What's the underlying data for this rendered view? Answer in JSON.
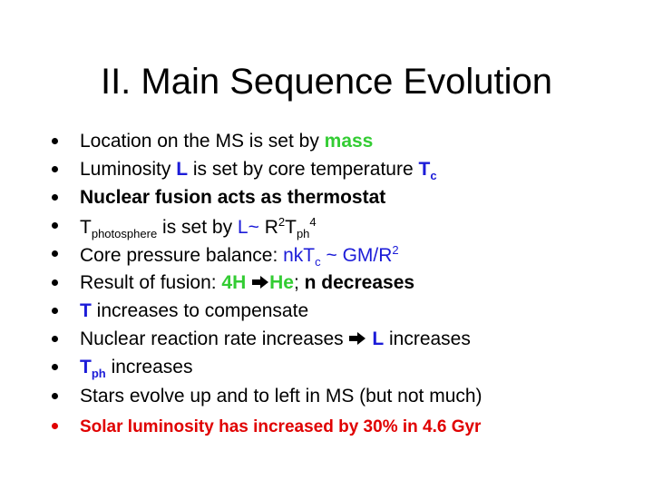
{
  "title": "II. Main Sequence Evolution",
  "bullets": [
    [
      "Location on the MS is set by ",
      "mass"
    ],
    [
      "Luminosity ",
      "L",
      " is set by core temperature ",
      "T",
      "c"
    ],
    [
      "Nuclear fusion acts as thermostat"
    ],
    [
      "T",
      "photosphere",
      " is set by ",
      "L~",
      " R",
      "2",
      "T",
      "ph",
      "4"
    ],
    [
      "Core pressure balance: ",
      "nkT",
      "c",
      " ~ GM/R",
      "2"
    ],
    [
      "Result of fusion: ",
      "4H ",
      "He",
      "; ",
      "n decreases"
    ],
    [
      "T",
      " increases to compensate"
    ],
    [
      "Nuclear reaction rate increases ",
      "L",
      " increases"
    ],
    [
      "T",
      "ph",
      " increases"
    ],
    [
      "Stars evolve up and to left in MS (but not much)"
    ],
    [
      "Solar luminosity has increased by 30%  in 4.6 Gyr"
    ]
  ]
}
